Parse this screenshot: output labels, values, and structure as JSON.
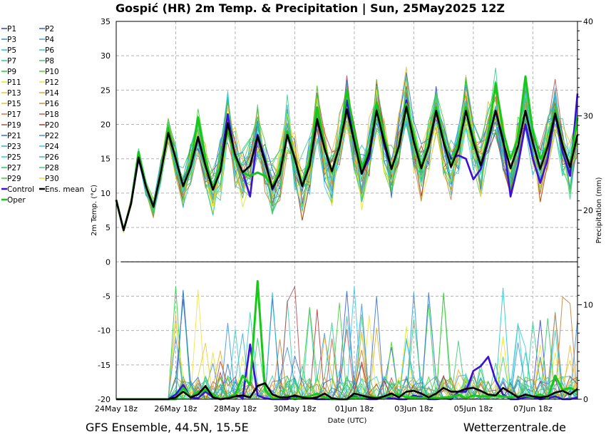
{
  "chart_data": {
    "type": "line",
    "title": "Gospić  (HR)  2m Temp. & Precipitation | Sun, 25May2025 12Z",
    "footer_left": "GFS Ensemble, 44.5N, 15.5E",
    "footer_right": "Wetterzentrale.de",
    "xlabel": "Date (UTC)",
    "ylabel_left": "2m Temp. (°C)",
    "ylabel_right": "Precipitation (mm)",
    "ylim_left": [
      -20,
      35
    ],
    "ylim_right": [
      0,
      40
    ],
    "yticks_left": [
      35,
      30,
      25,
      20,
      15,
      10,
      5,
      0,
      -5,
      -10,
      -15,
      -20
    ],
    "yticks_right": [
      40,
      30,
      20,
      10,
      0
    ],
    "x_range_days": [
      0,
      15.5
    ],
    "xticks": [
      {
        "day": 0,
        "label": "24May 18z"
      },
      {
        "day": 2,
        "label": "26May 18z"
      },
      {
        "day": 4,
        "label": "28May 18z"
      },
      {
        "day": 6,
        "label": "30May 18z"
      },
      {
        "day": 8,
        "label": "01Jun 18z"
      },
      {
        "day": 10,
        "label": "03Jun 18z"
      },
      {
        "day": 12,
        "label": "05Jun 18z"
      },
      {
        "day": 14,
        "label": "07Jun 18z"
      }
    ],
    "grid": true,
    "legend_placement": "left",
    "series": [
      {
        "name": "P1",
        "color": "#2e3fcf"
      },
      {
        "name": "P2",
        "color": "#2a5ae0"
      },
      {
        "name": "P3",
        "color": "#2b8fd6"
      },
      {
        "name": "P4",
        "color": "#3aa0e8"
      },
      {
        "name": "P5",
        "color": "#22c6cc"
      },
      {
        "name": "P6",
        "color": "#30d0b0"
      },
      {
        "name": "P7",
        "color": "#33cc88"
      },
      {
        "name": "P8",
        "color": "#3cc870"
      },
      {
        "name": "P9",
        "color": "#22d03a"
      },
      {
        "name": "P10",
        "color": "#44d81e"
      },
      {
        "name": "P11",
        "color": "#e6e61a"
      },
      {
        "name": "P12",
        "color": "#f0e040"
      },
      {
        "name": "P13",
        "color": "#eec830"
      },
      {
        "name": "P14",
        "color": "#e8a820"
      },
      {
        "name": "P15",
        "color": "#e8b840"
      },
      {
        "name": "P16",
        "color": "#d08a30"
      },
      {
        "name": "P17",
        "color": "#c87a30"
      },
      {
        "name": "P18",
        "color": "#c06040"
      },
      {
        "name": "P19",
        "color": "#b04848"
      },
      {
        "name": "P20",
        "color": "#b03030"
      },
      {
        "name": "P21",
        "color": "#2a6ed8"
      },
      {
        "name": "P22",
        "color": "#3a90e8"
      },
      {
        "name": "P23",
        "color": "#2ab0c8"
      },
      {
        "name": "P24",
        "color": "#30c8e8"
      },
      {
        "name": "P25",
        "color": "#36d0c0"
      },
      {
        "name": "P26",
        "color": "#30c890"
      },
      {
        "name": "P27",
        "color": "#28c860"
      },
      {
        "name": "P28",
        "color": "#40d070"
      },
      {
        "name": "P29",
        "color": "#40cc30"
      },
      {
        "name": "P30",
        "color": "#e8e020"
      },
      {
        "name": "Control",
        "color": "#3a10d8"
      },
      {
        "name": "Ens. mean",
        "color": "#000000"
      },
      {
        "name": "Oper",
        "color": "#18c818"
      }
    ],
    "temp_ctrl_mean_oper": {
      "x_days": [
        0,
        0.25,
        0.5,
        0.75,
        1,
        1.25,
        1.5,
        1.75,
        2,
        2.25,
        2.5,
        2.75,
        3,
        3.25,
        3.5,
        3.75,
        4,
        4.25,
        4.5,
        4.75,
        5,
        5.25,
        5.5,
        5.75,
        6,
        6.25,
        6.5,
        6.75,
        7,
        7.25,
        7.5,
        7.75,
        8,
        8.25,
        8.5,
        8.75,
        9,
        9.25,
        9.5,
        9.75,
        10,
        10.25,
        10.5,
        10.75,
        11,
        11.25,
        11.5,
        11.75,
        12,
        12.25,
        12.5,
        12.75,
        13,
        13.25,
        13.5,
        13.75,
        14,
        14.25,
        14.5,
        14.75,
        15,
        15.25,
        15.5
      ],
      "control": [
        9,
        4.6,
        8.5,
        15,
        11,
        8,
        13,
        19,
        15,
        11,
        14,
        18,
        14,
        10.5,
        14,
        21.5,
        15,
        13,
        9.5,
        18.5,
        15,
        10.5,
        13,
        18.5,
        15,
        11,
        14.5,
        20.5,
        16.5,
        13,
        17,
        23.5,
        18,
        13,
        15,
        22.5,
        17,
        13.5,
        17,
        23.5,
        17.5,
        14,
        17,
        22,
        17.5,
        15,
        15.5,
        15,
        12,
        13.5,
        17.5,
        22,
        18,
        9.5,
        14,
        20,
        15,
        11.5,
        15,
        21.5,
        16,
        12.5,
        24.5
      ],
      "ens_mean": [
        9,
        4.6,
        8.5,
        15.2,
        11,
        8,
        13,
        18.8,
        15,
        11,
        13.8,
        18.2,
        14,
        10.5,
        13.2,
        20.2,
        15.5,
        13,
        14,
        18.3,
        14.5,
        10.7,
        12.8,
        18.5,
        15,
        11,
        14,
        20.8,
        16.5,
        13.2,
        16.8,
        22.2,
        17.5,
        12.8,
        15.8,
        22,
        17.6,
        13.5,
        16.8,
        22.6,
        17.5,
        13.6,
        16.8,
        22,
        17.4,
        13.8,
        16.5,
        22,
        17.5,
        14,
        17.8,
        22,
        17.5,
        13.6,
        16.8,
        22,
        17.3,
        13.5,
        16.8,
        21.6,
        17,
        13.8,
        18.5
      ],
      "oper": [
        9,
        4.6,
        8.5,
        16,
        11,
        8,
        13,
        19.5,
        15,
        11,
        14.5,
        21,
        15,
        10.8,
        14,
        19.5,
        15,
        13,
        12.5,
        13,
        12.5,
        11,
        13.5,
        19,
        15,
        11,
        15,
        22.5,
        17,
        13,
        17,
        25,
        19,
        13.5,
        16.5,
        23.2,
        18.5,
        13.5,
        17,
        23,
        18.5,
        14,
        17,
        22.5,
        18,
        14,
        17.5,
        22.5,
        18,
        14,
        18.5,
        26,
        19,
        15,
        18,
        27,
        19,
        15,
        17,
        22,
        17,
        14,
        21
      ]
    },
    "precip_ctrl_mean_oper_mm": {
      "x_days": [
        0,
        0.25,
        0.5,
        0.75,
        1,
        1.25,
        1.5,
        1.75,
        2,
        2.25,
        2.5,
        2.75,
        3,
        3.25,
        3.5,
        3.75,
        4,
        4.25,
        4.5,
        4.75,
        5,
        5.25,
        5.5,
        5.75,
        6,
        6.25,
        6.5,
        6.75,
        7,
        7.25,
        7.5,
        7.75,
        8,
        8.25,
        8.5,
        8.75,
        9,
        9.25,
        9.5,
        9.75,
        10,
        10.25,
        10.5,
        10.75,
        11,
        11.25,
        11.5,
        11.75,
        12,
        12.25,
        12.5,
        12.75,
        13,
        13.25,
        13.5,
        13.75,
        14,
        14.25,
        14.5,
        14.75,
        15,
        15.25,
        15.5
      ],
      "control": [
        0,
        0,
        0,
        0,
        0,
        0,
        0,
        0,
        0.5,
        1.5,
        0.2,
        0.1,
        0.8,
        0.2,
        0,
        0.1,
        0.5,
        0.1,
        5.8,
        0.4,
        0.1,
        0,
        0,
        0,
        0.3,
        0.1,
        0.1,
        0,
        0,
        0,
        0,
        0,
        0.3,
        0.1,
        0,
        0,
        0.2,
        0.1,
        0,
        0,
        0.4,
        0.2,
        0,
        0,
        0.1,
        0,
        0.8,
        0.8,
        3,
        3.5,
        4.5,
        2,
        0.5,
        0,
        0,
        0.2,
        0.2,
        0,
        0.1,
        0.3,
        0,
        0,
        0.2
      ],
      "ens_mean": [
        0,
        0,
        0,
        0,
        0,
        0,
        0,
        0,
        0.2,
        0.8,
        0.2,
        0.5,
        1.4,
        0.2,
        0,
        0.1,
        0.3,
        0.4,
        0.2,
        1.4,
        1.7,
        0.5,
        0.2,
        0.2,
        0.4,
        0.2,
        0.1,
        0.2,
        0.6,
        0.1,
        0,
        0,
        0.6,
        0.4,
        0.2,
        0.1,
        0.3,
        0.6,
        0.2,
        0.8,
        0.9,
        0.6,
        0.2,
        0.6,
        1.2,
        0.8,
        0.8,
        1.1,
        1.2,
        0.9,
        0.5,
        0.4,
        1.2,
        0.7,
        0.2,
        0.5,
        0.3,
        0.2,
        0.3,
        0.7,
        0.9,
        0.5,
        1.1
      ],
      "oper": [
        0,
        0,
        0,
        0,
        0,
        0,
        0,
        0,
        0,
        1.2,
        0.2,
        0.8,
        1,
        0.5,
        0,
        0.2,
        0.5,
        2.5,
        1.5,
        12.5,
        1,
        0.1,
        0.1,
        0.4,
        0,
        0.2,
        0.3,
        0.6,
        0.2,
        0,
        0,
        0,
        0.2,
        0.1,
        0.3,
        0.2,
        0.2,
        0.4,
        0.5,
        0.2,
        0.2,
        0.1,
        0.2,
        0.1,
        0.2,
        0.2,
        0.5,
        0.1,
        0.4,
        0.3,
        0.3,
        0.4,
        0.3,
        0.2,
        0.3,
        0.4,
        0.2,
        0.5,
        0.1,
        2.5,
        1,
        1.2,
        0.8
      ]
    }
  }
}
